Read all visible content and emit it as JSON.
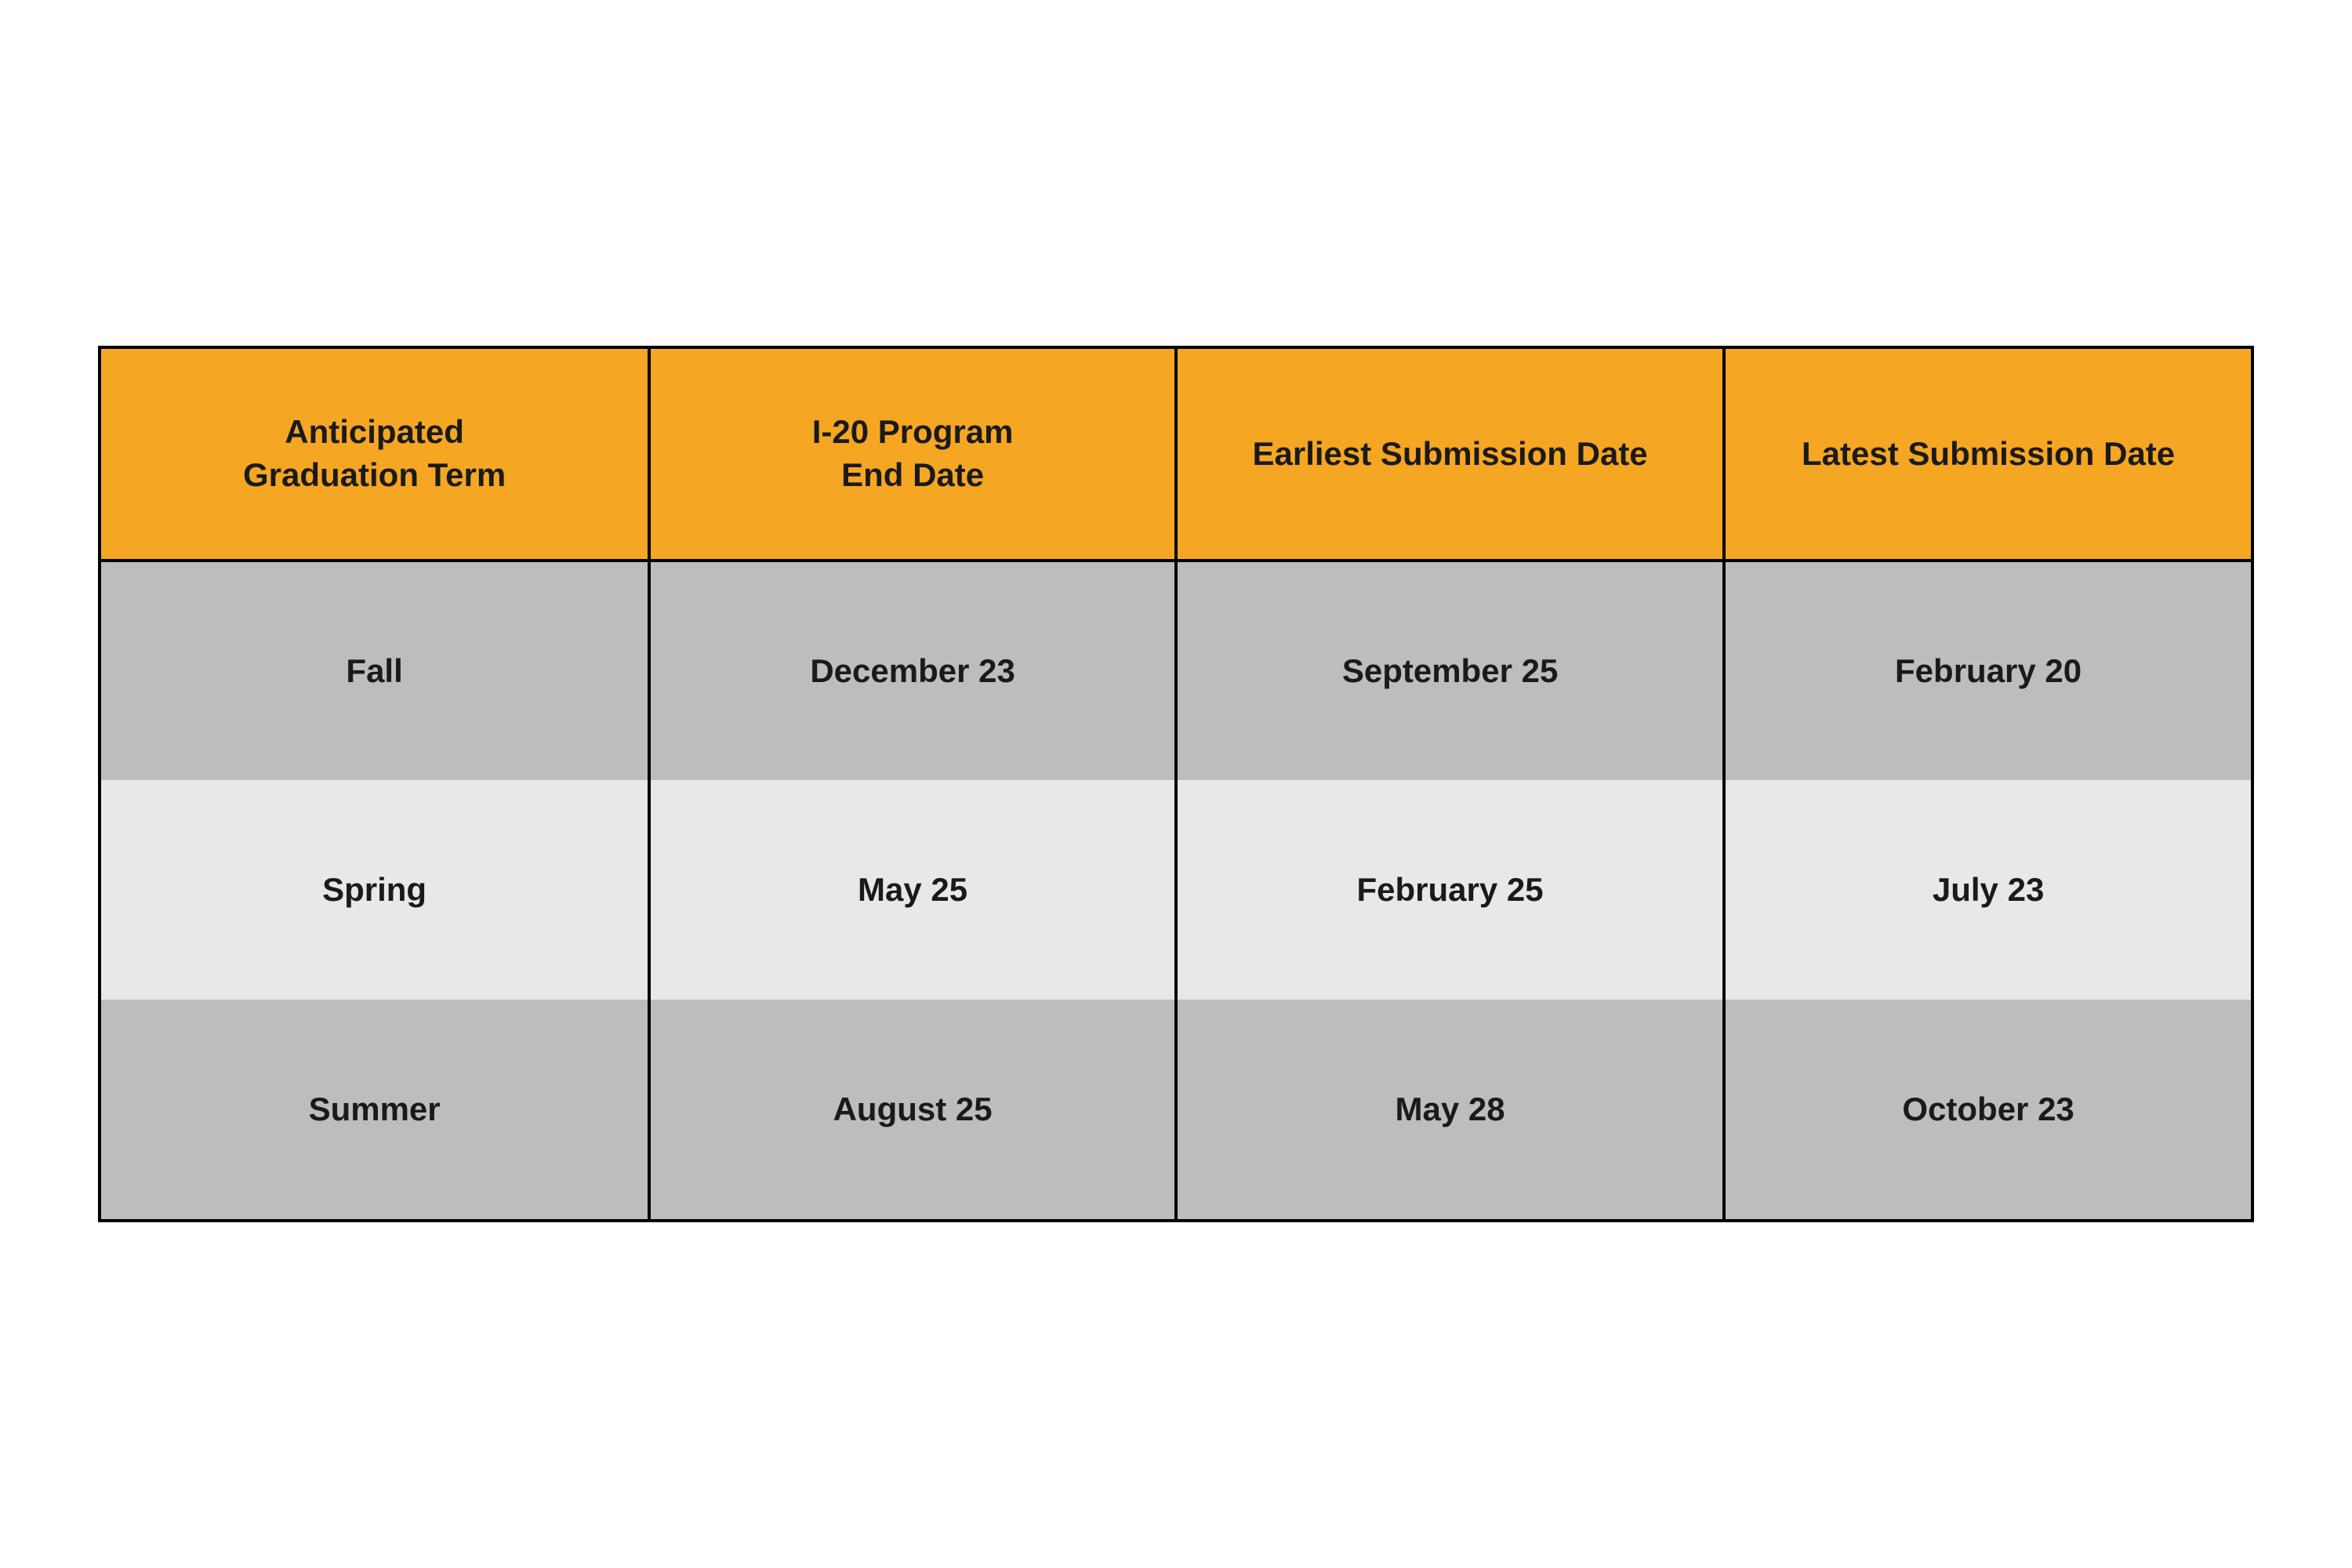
{
  "table": {
    "type": "table",
    "header_background_color": "#f5a623",
    "row_odd_background_color": "#bdbdbd",
    "row_even_background_color": "#e8e8e8",
    "border_color": "#000000",
    "text_color": "#1a1a1a",
    "font_size_pt": 32,
    "font_weight": "bold",
    "columns": [
      {
        "label_line1": "Anticipated",
        "label_line2": "Graduation Term",
        "width_pct": 25.5
      },
      {
        "label_line1": "I-20 Program",
        "label_line2": "End Date",
        "width_pct": 24.5
      },
      {
        "label_line1": "Earliest Submission Date",
        "label_line2": "",
        "width_pct": 25.5
      },
      {
        "label_line1": "Latest Submission Date",
        "label_line2": "",
        "width_pct": 24.5
      }
    ],
    "rows": [
      {
        "term": "Fall",
        "end_date": "December 23",
        "earliest": "September 25",
        "latest": "February 20"
      },
      {
        "term": "Spring",
        "end_date": "May 25",
        "earliest": "February 25",
        "latest": "July 23"
      },
      {
        "term": "Summer",
        "end_date": "August 25",
        "earliest": "May 28",
        "latest": "October 23"
      }
    ]
  }
}
